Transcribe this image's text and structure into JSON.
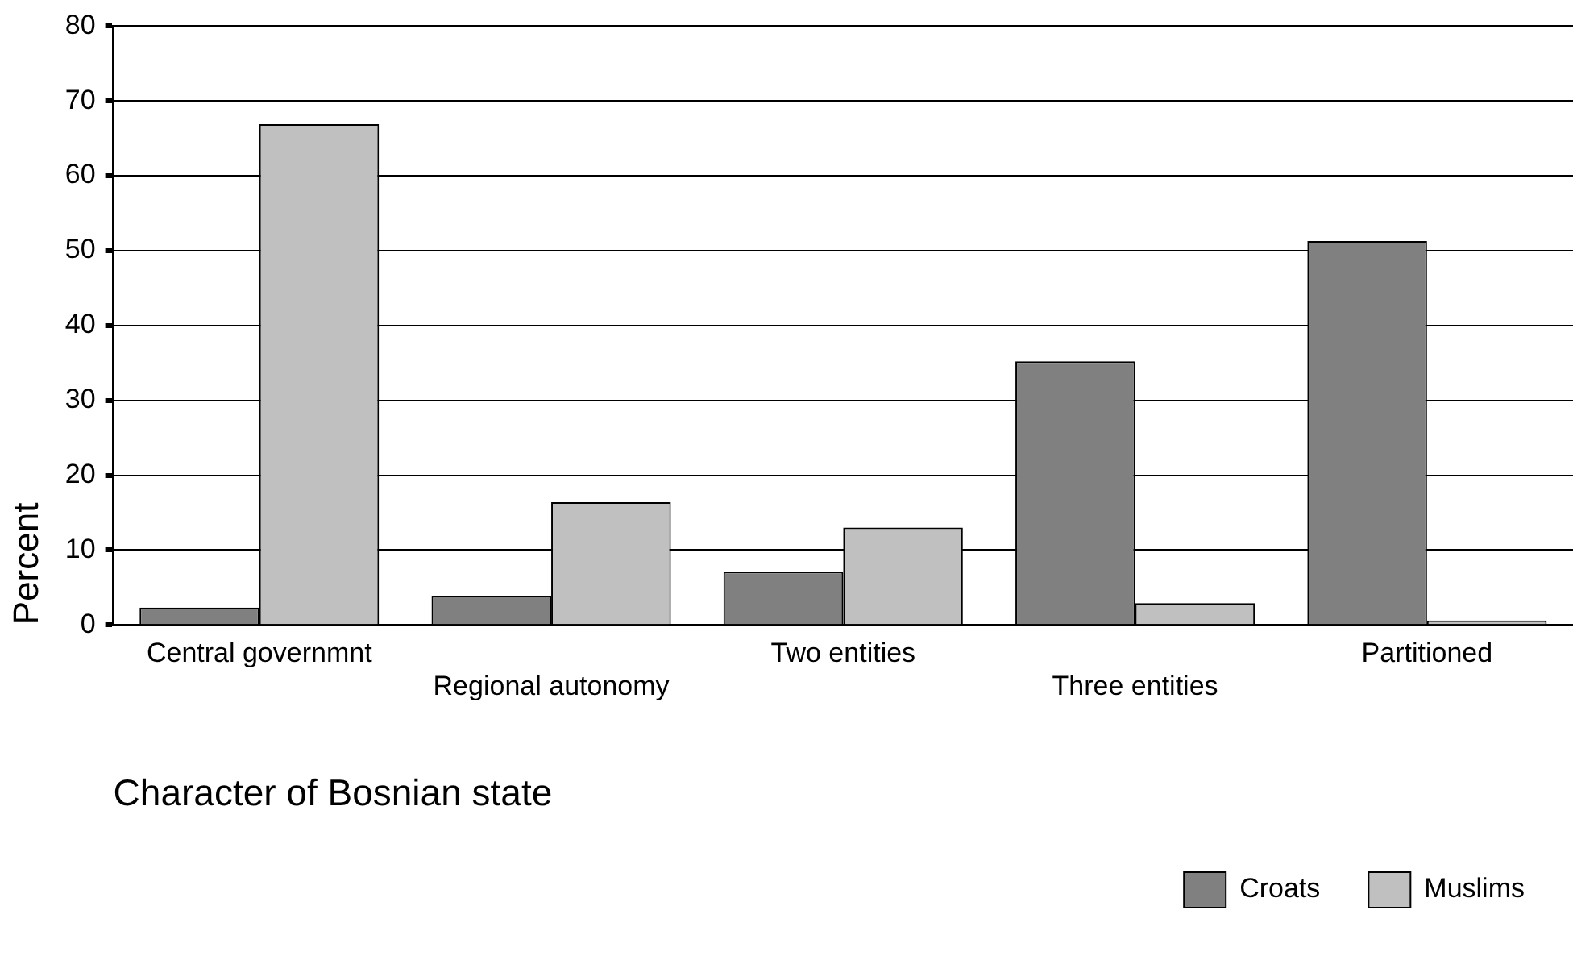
{
  "chart_data": {
    "type": "bar",
    "xlabel": "Character of Bosnian state",
    "ylabel": "Percent",
    "categories": [
      "Central governmnt",
      "Regional autonomy",
      "Two entities",
      "Three entities",
      "Partitioned"
    ],
    "series": [
      {
        "name": "Croats",
        "color": "#808080",
        "values": [
          2.3,
          3.9,
          7.1,
          35.2,
          51.3
        ]
      },
      {
        "name": "Muslims",
        "color": "#c0c0c0",
        "values": [
          66.9,
          16.4,
          13.0,
          2.9,
          0.6
        ]
      }
    ],
    "ylim": [
      0,
      80
    ],
    "yticks": [
      0,
      10,
      20,
      30,
      40,
      50,
      60,
      70,
      80
    ],
    "grid": "y",
    "legend": "bottom right"
  }
}
